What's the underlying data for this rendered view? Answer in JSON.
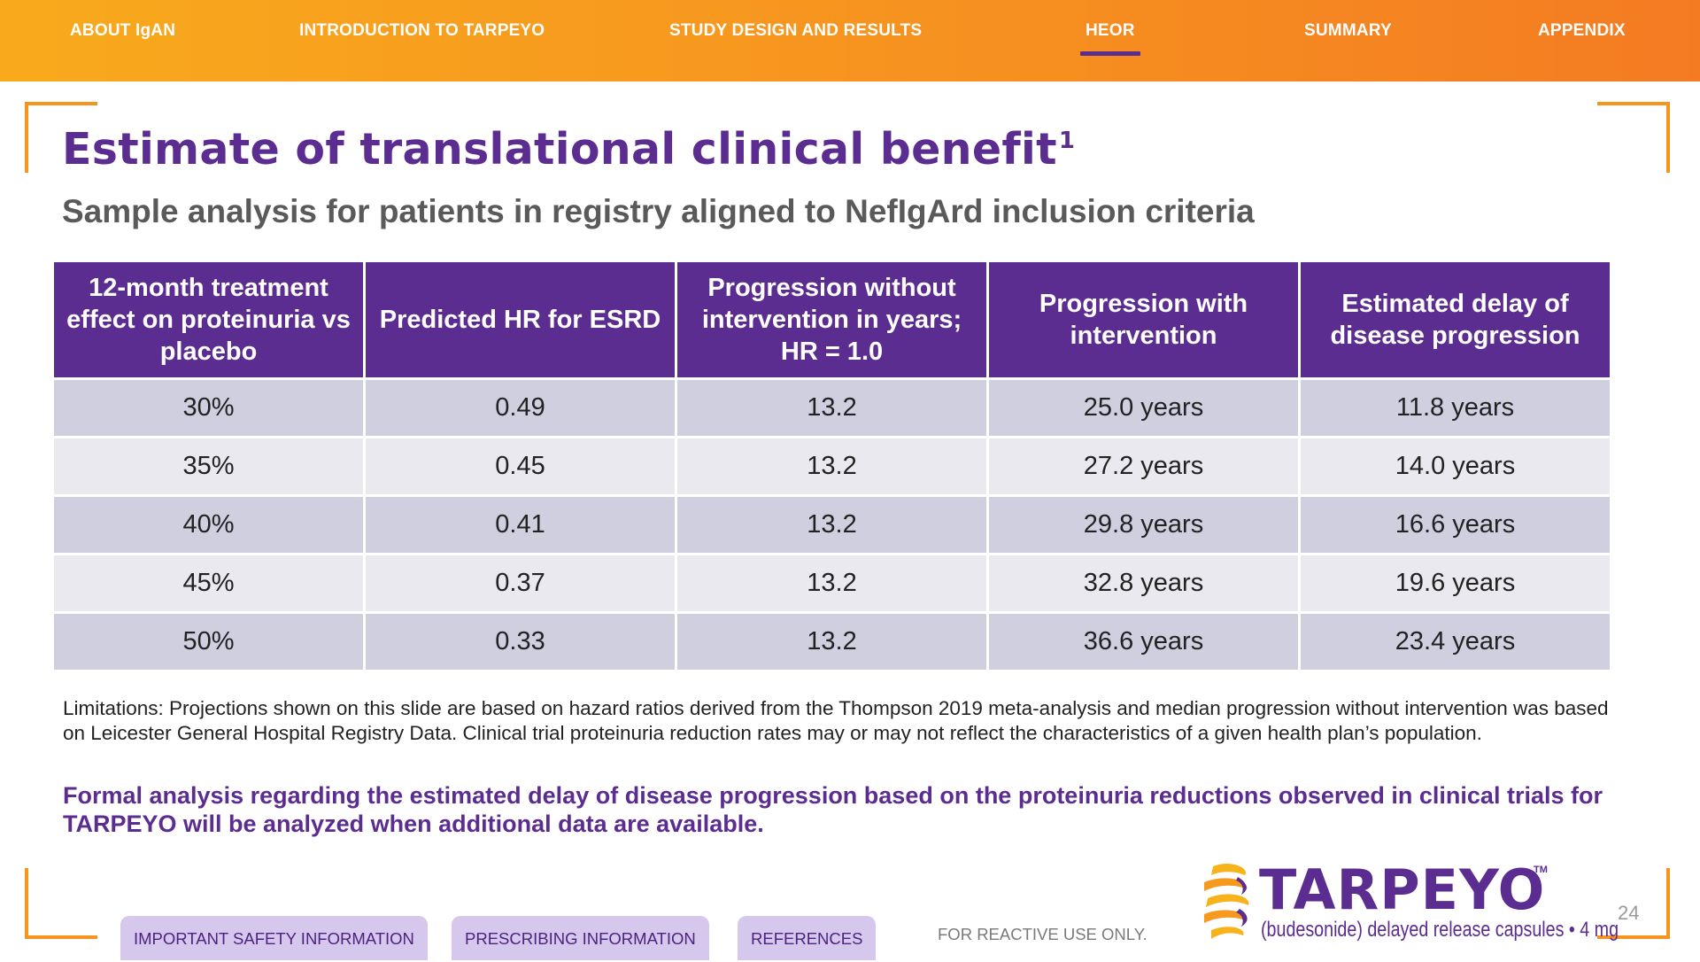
{
  "nav": {
    "items": [
      {
        "label": "ABOUT IgAN"
      },
      {
        "label": "INTRODUCTION TO TARPEYO"
      },
      {
        "label": "STUDY DESIGN AND RESULTS"
      },
      {
        "label": "HEOR",
        "active": true
      },
      {
        "label": "SUMMARY"
      },
      {
        "label": "APPENDIX"
      }
    ]
  },
  "slide": {
    "title": "Estimate of translational clinical benefit",
    "title_sup": "1",
    "subtitle": "Sample analysis for patients in registry aligned to NefIgArd inclusion criteria"
  },
  "table": {
    "headers": [
      "12-month treatment effect on proteinuria vs placebo",
      "Predicted HR for ESRD",
      "Progression without intervention in years; HR = 1.0",
      "Progression with intervention",
      "Estimated delay of disease progression"
    ],
    "rows": [
      [
        "30%",
        "0.49",
        "13.2",
        "25.0 years",
        "11.8 years"
      ],
      [
        "35%",
        "0.45",
        "13.2",
        "27.2 years",
        "14.0 years"
      ],
      [
        "40%",
        "0.41",
        "13.2",
        "29.8 years",
        "16.6 years"
      ],
      [
        "45%",
        "0.37",
        "13.2",
        "32.8 years",
        "19.6 years"
      ],
      [
        "50%",
        "0.33",
        "13.2",
        "36.6 years",
        "23.4 years"
      ]
    ]
  },
  "notes": {
    "limitations": "Limitations: Projections shown on this slide are based on hazard ratios derived from the Thompson 2019 meta-analysis and median progression without intervention was based on Leicester General Hospital Registry Data. Clinical trial proteinuria reduction rates may or may not reflect the characteristics of a given health plan’s population.",
    "formal": "Formal analysis regarding the estimated delay of disease progression based on the proteinuria reductions observed in clinical trials for TARPEYO will be analyzed when additional data are available."
  },
  "footer": {
    "safety_label": "IMPORTANT SAFETY INFORMATION",
    "prescribing_label": "PRESCRIBING INFORMATION",
    "references_label": "REFERENCES",
    "reactive_text": "FOR REACTIVE USE ONLY.",
    "page_number": "24"
  },
  "logo": {
    "wordmark": "TARPEYO",
    "tm": "TM",
    "tagline": "(budesonide) delayed release capsules • 4 mg"
  },
  "colors": {
    "brand_purple": "#5c2d91",
    "nav_orange": "#f7971f",
    "bracket_orange": "#f7941d",
    "row_dark": "#d0cfe0",
    "row_light": "#e9e9ef",
    "pill_bg": "#d6c7ec"
  }
}
